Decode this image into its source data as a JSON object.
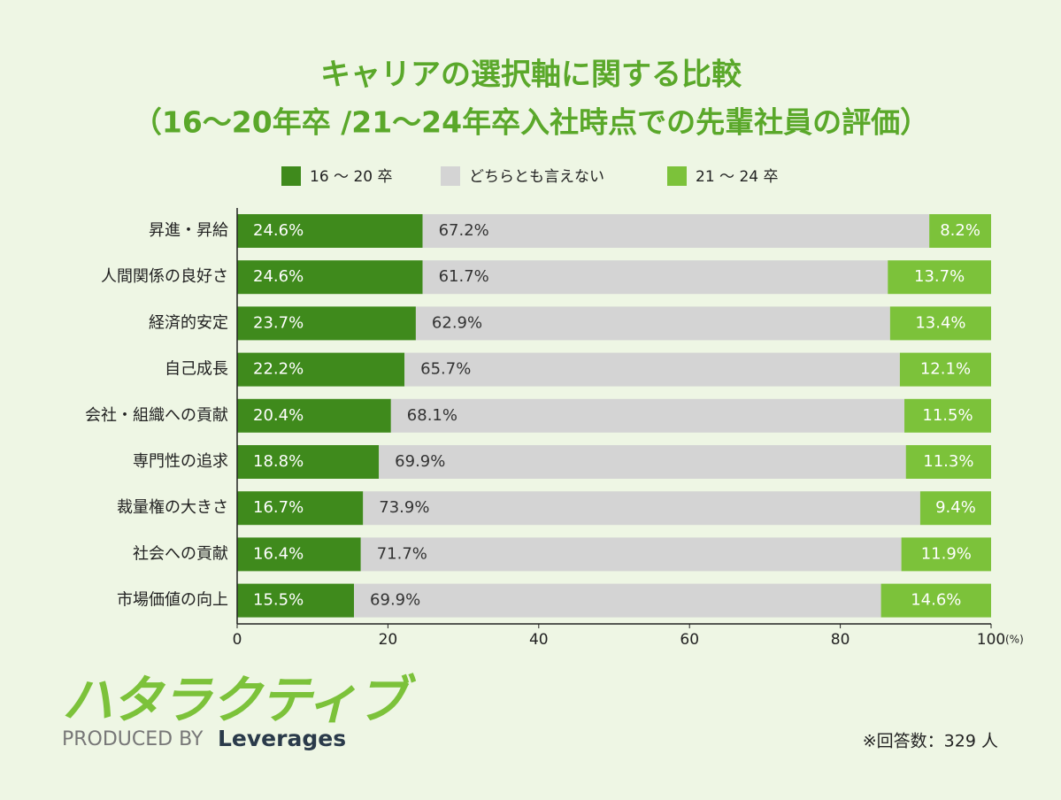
{
  "chart_data": {
    "type": "stacked_bar_horizontal",
    "title": "キャリアの選択軸に関する比較",
    "subtitle": "（16～20年卒 /21～24年卒入社時点での先輩社員の評価）",
    "categories": [
      "昇進・昇給",
      "人間関係の良好さ",
      "経済的安定",
      "自己成長",
      "会社・組織への貢献",
      "専門性の追求",
      "裁量権の大きさ",
      "社会への貢献",
      "市場価値の向上"
    ],
    "series": [
      {
        "name": "16 ～ 20 卒",
        "color": "#3f8a1c",
        "values": [
          24.6,
          24.6,
          23.7,
          22.2,
          20.4,
          18.8,
          16.7,
          16.4,
          15.5
        ],
        "value_labels": [
          "24.6%",
          "24.6%",
          "23.7%",
          "22.2%",
          "20.4%",
          "18.8%",
          "16.7%",
          "16.4%",
          "15.5%"
        ]
      },
      {
        "name": "どちらとも言えない",
        "color": "#d4d4d4",
        "values": [
          67.2,
          61.7,
          62.9,
          65.7,
          68.1,
          69.9,
          73.9,
          71.7,
          69.9
        ],
        "value_labels": [
          "67.2%",
          "61.7%",
          "62.9%",
          "65.7%",
          "68.1%",
          "69.9%",
          "73.9%",
          "71.7%",
          "69.9%"
        ]
      },
      {
        "name": "21 ～ 24 卒",
        "color": "#7cc23a",
        "values": [
          8.2,
          13.7,
          13.4,
          12.1,
          11.5,
          11.3,
          9.4,
          11.9,
          14.6
        ],
        "value_labels": [
          "8.2%",
          "13.7%",
          "13.4%",
          "12.1%",
          "11.5%",
          "11.3%",
          "9.4%",
          "11.9%",
          "14.6%"
        ]
      }
    ],
    "xlim": [
      0,
      100
    ],
    "xticks": [
      0,
      20,
      40,
      60,
      80,
      100
    ],
    "x_unit": "(%)",
    "legend": "top",
    "note": "※回答数：329 人"
  },
  "branding": {
    "logo": "ハタラクティブ",
    "produced_by": "PRODUCED BY",
    "company": "Leverages"
  }
}
